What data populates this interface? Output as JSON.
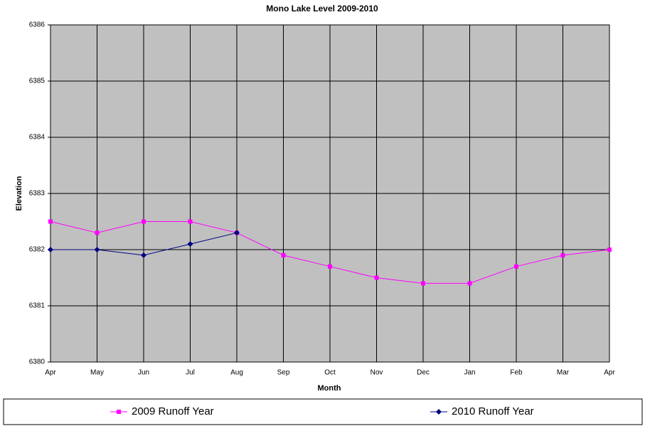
{
  "chart_data": {
    "type": "line",
    "title": "Mono Lake Level 2009-2010",
    "x_label": "Month",
    "y_label": "Elevation",
    "categories": [
      "Apr",
      "May",
      "Jun",
      "Jul",
      "Aug",
      "Sep",
      "Oct",
      "Nov",
      "Dec",
      "Jan",
      "Feb",
      "Mar",
      "Apr"
    ],
    "series": [
      {
        "name": "2009 Runoff Year",
        "color": "#ff00ff",
        "marker": "square",
        "values": [
          6382.5,
          6382.3,
          6382.5,
          6382.5,
          6382.3,
          6381.9,
          6381.7,
          6381.5,
          6381.4,
          6381.4,
          6381.7,
          6381.9,
          6382.0
        ]
      },
      {
        "name": "2010 Runoff Year",
        "color": "#000080",
        "marker": "diamond",
        "values": [
          6382.0,
          6382.0,
          6381.9,
          6382.1,
          6382.3,
          null,
          null,
          null,
          null,
          null,
          null,
          null,
          null
        ]
      }
    ],
    "ylim": [
      6380,
      6386
    ],
    "yticks": [
      6380,
      6381,
      6382,
      6383,
      6384,
      6385,
      6386
    ],
    "grid": true,
    "plot_background": "#c0c0c0",
    "legend": "bottom"
  }
}
